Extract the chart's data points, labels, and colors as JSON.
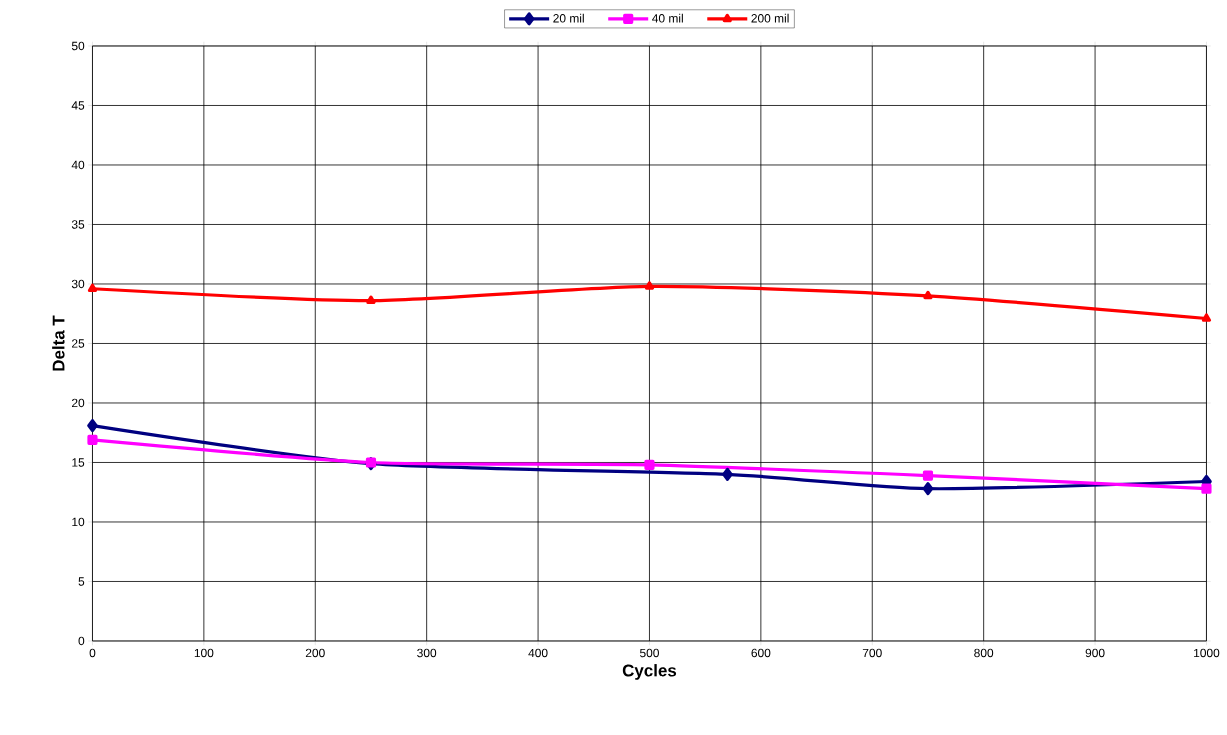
{
  "chart_data": {
    "type": "line",
    "xlabel": "Cycles",
    "ylabel": "Delta T",
    "xlim": [
      0,
      1000
    ],
    "xticks": [
      0,
      100,
      200,
      300,
      400,
      500,
      600,
      700,
      800,
      900,
      1000
    ],
    "ylim": [
      0,
      50
    ],
    "yticks": [
      0,
      5,
      10,
      15,
      20,
      25,
      30,
      35,
      40,
      45,
      50
    ],
    "grid": true,
    "legend": "top",
    "series": [
      {
        "name": "20 mil",
        "color": "#000080",
        "marker": "diamond",
        "x": [
          0,
          250,
          570,
          750,
          1000
        ],
        "values": [
          18.1,
          14.9,
          14.0,
          12.8,
          13.4
        ]
      },
      {
        "name": "40 mil",
        "color": "#ff00ff",
        "marker": "square",
        "x": [
          0,
          250,
          500,
          750,
          1000
        ],
        "values": [
          16.9,
          15.0,
          14.8,
          13.9,
          12.8
        ]
      },
      {
        "name": "200 mil",
        "color": "#ff0000",
        "marker": "triangle",
        "x": [
          0,
          250,
          500,
          750,
          1000
        ],
        "values": [
          29.6,
          28.6,
          29.8,
          29.0,
          27.1
        ]
      }
    ]
  }
}
